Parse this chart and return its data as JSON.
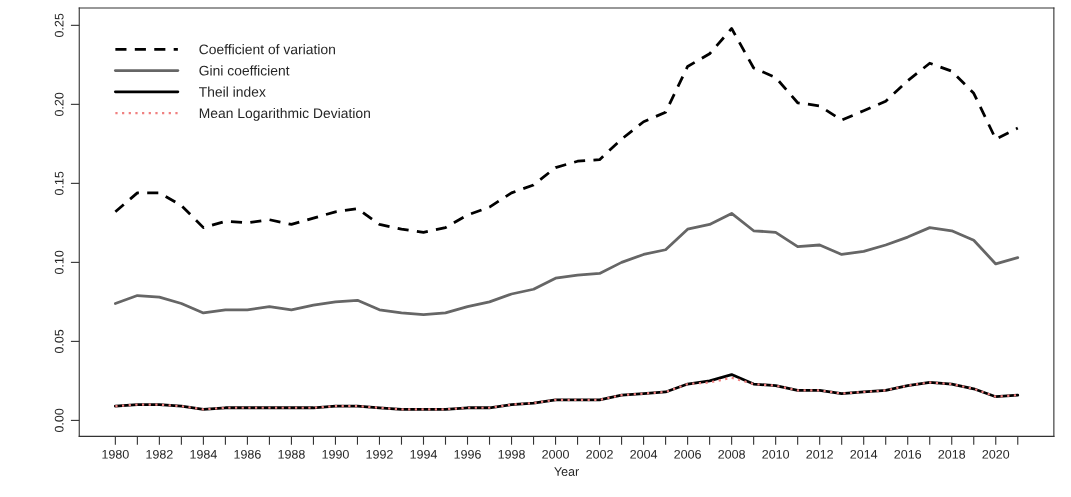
{
  "chart_data": {
    "type": "line",
    "xlabel": "Year",
    "x": [
      1980,
      1981,
      1982,
      1983,
      1984,
      1985,
      1986,
      1987,
      1988,
      1989,
      1990,
      1991,
      1992,
      1993,
      1994,
      1995,
      1996,
      1997,
      1998,
      1999,
      2000,
      2001,
      2002,
      2003,
      2004,
      2005,
      2006,
      2007,
      2008,
      2009,
      2010,
      2011,
      2012,
      2013,
      2014,
      2015,
      2016,
      2017,
      2018,
      2019,
      2020,
      2021
    ],
    "series": [
      {
        "name": "Coefficient of variation",
        "color": "#000000",
        "line_style": "dashed",
        "values": [
          0.132,
          0.144,
          0.144,
          0.136,
          0.122,
          0.126,
          0.125,
          0.127,
          0.124,
          0.128,
          0.132,
          0.134,
          0.124,
          0.121,
          0.119,
          0.122,
          0.13,
          0.135,
          0.144,
          0.149,
          0.16,
          0.164,
          0.165,
          0.178,
          0.189,
          0.195,
          0.224,
          0.232,
          0.248,
          0.223,
          0.217,
          0.201,
          0.199,
          0.19,
          0.196,
          0.202,
          0.215,
          0.226,
          0.221,
          0.207,
          0.178,
          0.185
        ]
      },
      {
        "name": "Gini coefficient",
        "color": "#666666",
        "line_style": "solid",
        "values": [
          0.074,
          0.079,
          0.078,
          0.074,
          0.068,
          0.07,
          0.07,
          0.072,
          0.07,
          0.073,
          0.075,
          0.076,
          0.07,
          0.068,
          0.067,
          0.068,
          0.072,
          0.075,
          0.08,
          0.083,
          0.09,
          0.092,
          0.093,
          0.1,
          0.105,
          0.108,
          0.121,
          0.124,
          0.131,
          0.12,
          0.119,
          0.11,
          0.111,
          0.105,
          0.107,
          0.111,
          0.116,
          0.122,
          0.12,
          0.114,
          0.099,
          0.103
        ]
      },
      {
        "name": "Theil index",
        "color": "#000000",
        "line_style": "solid",
        "values": [
          0.009,
          0.01,
          0.01,
          0.009,
          0.007,
          0.008,
          0.008,
          0.008,
          0.008,
          0.008,
          0.009,
          0.009,
          0.008,
          0.007,
          0.007,
          0.007,
          0.008,
          0.008,
          0.01,
          0.011,
          0.013,
          0.013,
          0.013,
          0.016,
          0.017,
          0.018,
          0.023,
          0.025,
          0.029,
          0.023,
          0.022,
          0.019,
          0.019,
          0.017,
          0.018,
          0.019,
          0.022,
          0.024,
          0.023,
          0.02,
          0.015,
          0.016
        ]
      },
      {
        "name": "Mean Logarithmic Deviation",
        "color": "#f08080",
        "line_style": "dotted",
        "values": [
          0.009,
          0.01,
          0.01,
          0.009,
          0.007,
          0.008,
          0.008,
          0.008,
          0.008,
          0.008,
          0.009,
          0.009,
          0.008,
          0.007,
          0.007,
          0.007,
          0.008,
          0.008,
          0.01,
          0.011,
          0.013,
          0.013,
          0.013,
          0.016,
          0.017,
          0.018,
          0.023,
          0.024,
          0.027,
          0.023,
          0.022,
          0.019,
          0.019,
          0.017,
          0.018,
          0.019,
          0.022,
          0.024,
          0.023,
          0.02,
          0.015,
          0.016
        ]
      }
    ],
    "xlim": [
      1978.36,
      2022.64
    ],
    "xticks": [
      1980,
      {
        "value": 1981,
        "label": null
      },
      1982,
      {
        "value": 1983,
        "label": null
      },
      1984,
      {
        "value": 1985,
        "label": null
      },
      1986,
      {
        "value": 1987,
        "label": null
      },
      1988,
      {
        "value": 1989,
        "label": null
      },
      1990,
      {
        "value": 1991,
        "label": null
      },
      1992,
      {
        "value": 1993,
        "label": null
      },
      1994,
      {
        "value": 1995,
        "label": null
      },
      1996,
      {
        "value": 1997,
        "label": null
      },
      1998,
      {
        "value": 1999,
        "label": null
      },
      2000,
      {
        "value": 2001,
        "label": null
      },
      2002,
      {
        "value": 2003,
        "label": null
      },
      2004,
      {
        "value": 2005,
        "label": null
      },
      2006,
      {
        "value": 2007,
        "label": null
      },
      2008,
      {
        "value": 2009,
        "label": null
      },
      2010,
      {
        "value": 2011,
        "label": null
      },
      2012,
      {
        "value": 2013,
        "label": null
      },
      2014,
      {
        "value": 2015,
        "label": null
      },
      2016,
      {
        "value": 2017,
        "label": null
      },
      2018,
      {
        "value": 2019,
        "label": null
      },
      2020,
      {
        "value": 2021,
        "label": null
      }
    ],
    "ylim": [
      -0.0101,
      0.261
    ],
    "yticks": [
      {
        "value": 0,
        "label": "0.00"
      },
      {
        "value": 0.05,
        "label": "0.05"
      },
      {
        "value": 0.1,
        "label": "0.10"
      },
      {
        "value": 0.15,
        "label": "0.15"
      },
      {
        "value": 0.2,
        "label": "0.20"
      },
      {
        "value": 0.25,
        "label": "0.25"
      }
    ],
    "grid": false,
    "legend": "top left",
    "marker": "none"
  }
}
